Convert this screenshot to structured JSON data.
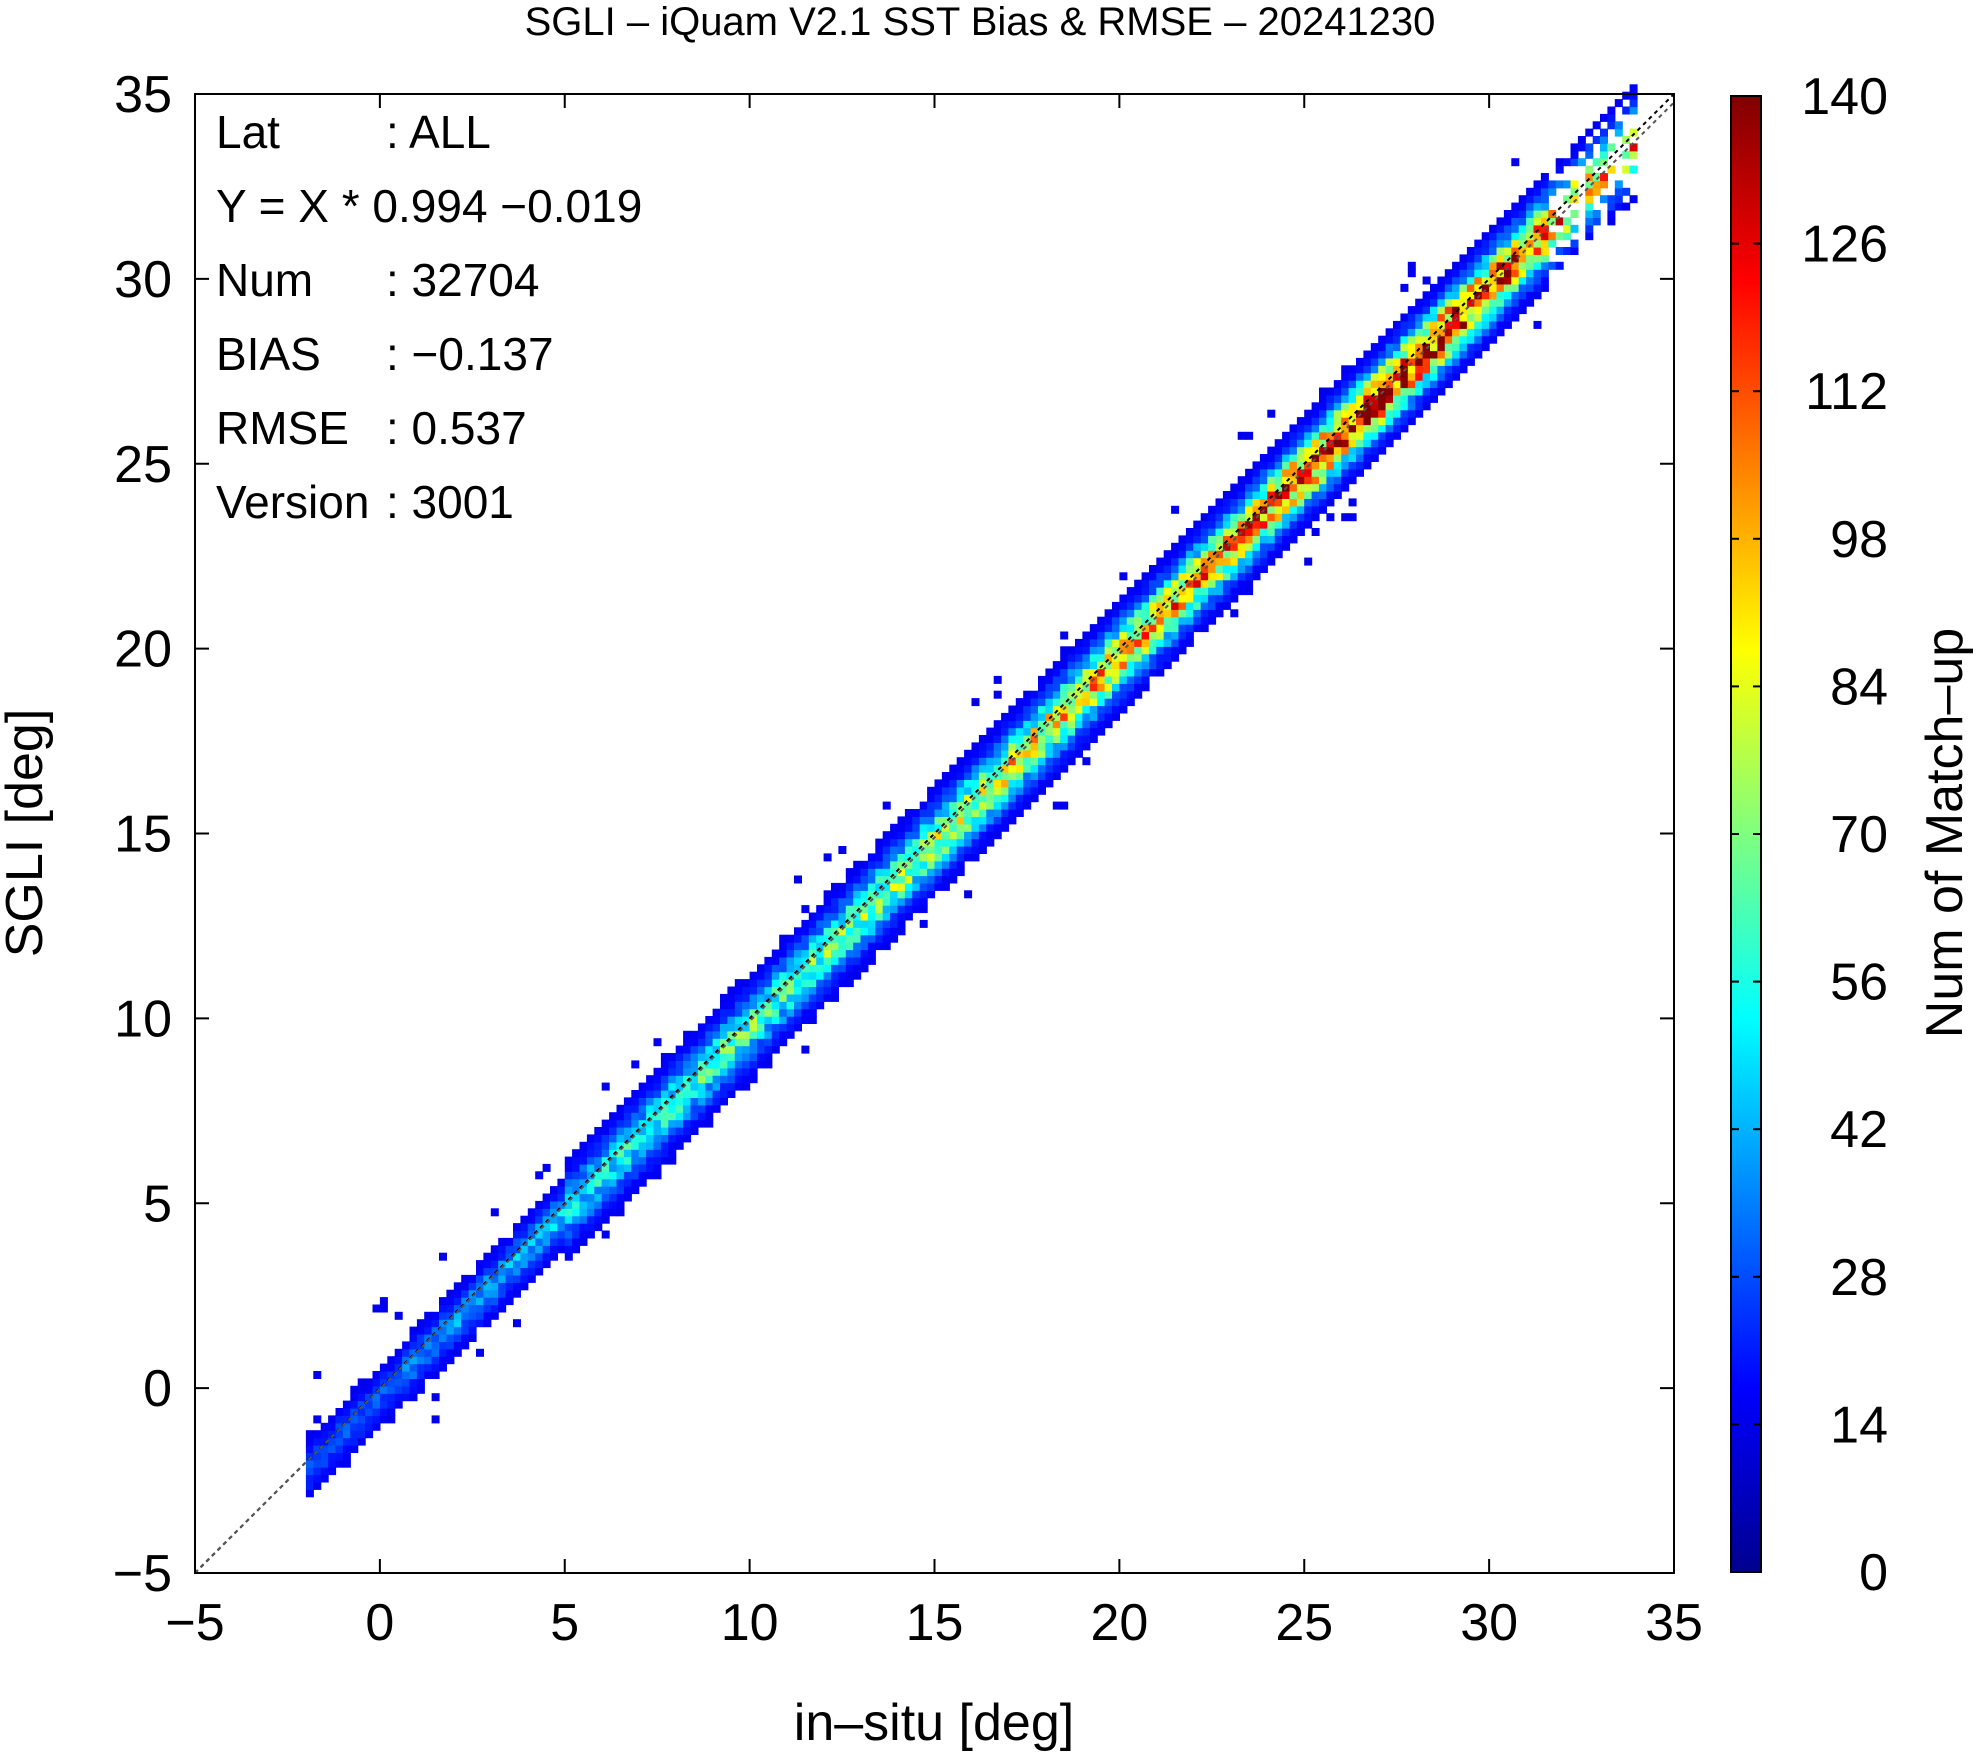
{
  "chart_data": {
    "type": "heatmap",
    "title": "SGLI – iQuam V2.1 SST Bias & RMSE  – 20241230",
    "xlabel": "in–situ [deg]",
    "ylabel": "SGLI [deg]",
    "xlim": [
      -5,
      35
    ],
    "ylim": [
      -5,
      35
    ],
    "x_ticks": [
      "−5",
      "0",
      "5",
      "10",
      "15",
      "20",
      "25",
      "30",
      "35"
    ],
    "y_ticks": [
      "−5",
      "0",
      "5",
      "10",
      "15",
      "20",
      "25",
      "30",
      "35"
    ],
    "colorbar": {
      "label": "Num of Match–up",
      "range": [
        0,
        140
      ],
      "ticks": [
        "0",
        "14",
        "28",
        "42",
        "56",
        "70",
        "84",
        "98",
        "112",
        "126",
        "140"
      ],
      "colormap": "jet"
    },
    "stats": [
      {
        "key": "Lat",
        "value": ": ALL"
      },
      {
        "key": "Y = X * 0.994 −0.019",
        "value": ""
      },
      {
        "key": "Num",
        "value": ": 32704"
      },
      {
        "key": "BIAS",
        "value": ": −0.137"
      },
      {
        "key": "RMSE",
        "value": ": 0.537"
      },
      {
        "key": "Version",
        "value": ": 3001"
      }
    ],
    "regression": {
      "slope": 0.994,
      "intercept": -0.019
    },
    "reference_line": {
      "slope": 1,
      "intercept": 0
    },
    "bin_size": 0.2,
    "density_model": {
      "bias": -0.137,
      "spread": 0.537,
      "peak_x": 27.6,
      "peak_count": 135
    }
  }
}
